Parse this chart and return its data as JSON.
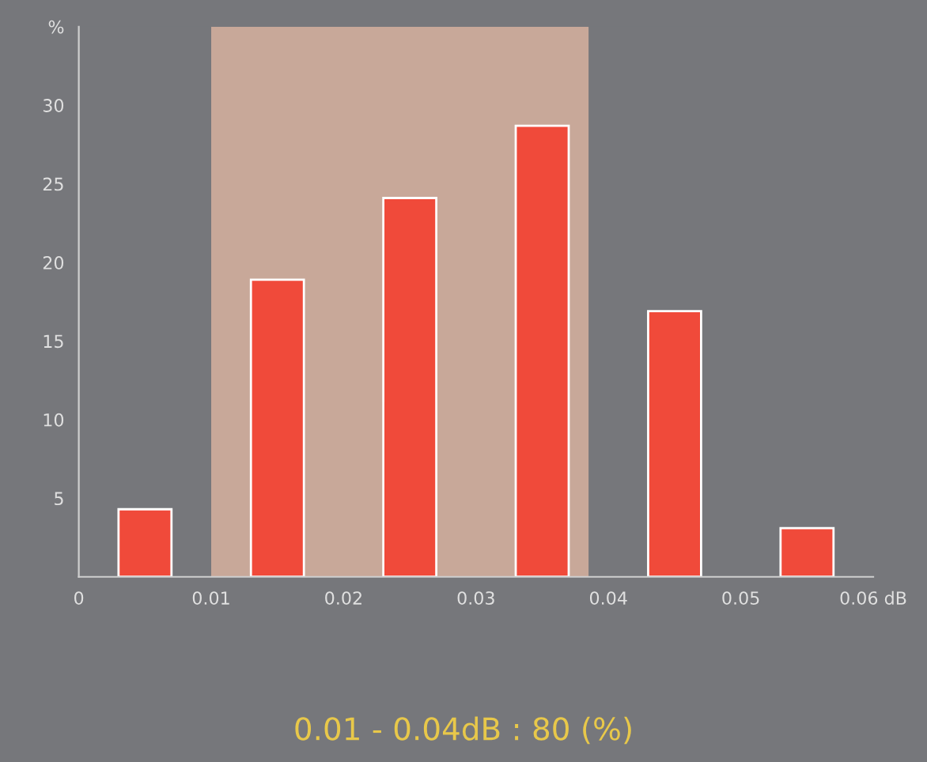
{
  "chart_data": {
    "type": "histogram",
    "bins": [
      0,
      0.01,
      0.02,
      0.03,
      0.04,
      0.05,
      0.06
    ],
    "values": [
      4.3,
      18.9,
      24.1,
      28.7,
      16.9,
      3.1
    ],
    "color": "#f04a3a",
    "xlim": [
      0,
      0.06
    ],
    "ylim": [
      0,
      35
    ],
    "xticks": [
      0,
      0.01,
      0.02,
      0.03,
      0.04,
      0.05,
      {
        "value": 0.06,
        "label": "0.06 dB"
      }
    ],
    "yticks": [
      5,
      10,
      15,
      20,
      25,
      30,
      {
        "value": 35,
        "label": "%"
      }
    ],
    "bands": [
      {
        "axis": "x",
        "from": 0.01,
        "to": 0.0385,
        "label": null,
        "color": "#c8a899"
      }
    ],
    "annotations": [
      "0.01 - 0.04dB : 80 (%)"
    ],
    "grid": false,
    "legend": false
  }
}
